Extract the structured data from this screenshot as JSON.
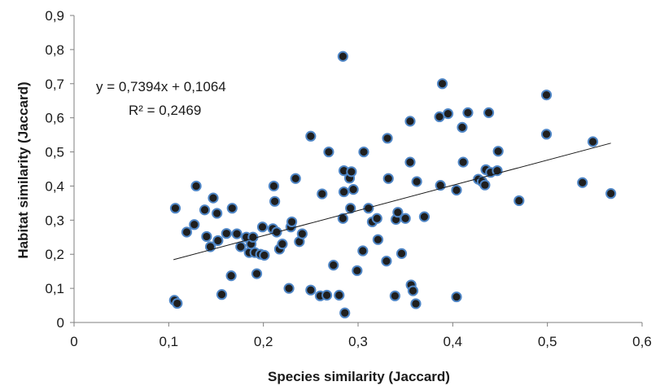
{
  "chart_data": {
    "type": "scatter",
    "title": "",
    "xlabel": "Species similarity (Jaccard)",
    "ylabel": "Habitat similarity (Jaccard)",
    "xlim": [
      0,
      0.6
    ],
    "ylim": [
      0,
      0.9
    ],
    "x_ticks": [
      "0",
      "0,1",
      "0,2",
      "0,3",
      "0,4",
      "0,5",
      "0,6"
    ],
    "y_ticks": [
      "0",
      "0,1",
      "0,2",
      "0,3",
      "0,4",
      "0,5",
      "0,6",
      "0,7",
      "0,8",
      "0,9"
    ],
    "grid": false,
    "legend": "none",
    "marker_fill": "#1f1f1f",
    "marker_edge": "#4f86c6",
    "equation": "y = 0,7394x + 0,1064",
    "r_squared": "R² = 0,2469",
    "trendline": {
      "slope": 0.7394,
      "intercept": 0.1064,
      "x_range": [
        0.105,
        0.567
      ]
    },
    "points": [
      [
        0.106,
        0.065
      ],
      [
        0.109,
        0.056
      ],
      [
        0.107,
        0.335
      ],
      [
        0.119,
        0.265
      ],
      [
        0.127,
        0.287
      ],
      [
        0.129,
        0.4
      ],
      [
        0.138,
        0.33
      ],
      [
        0.14,
        0.252
      ],
      [
        0.144,
        0.222
      ],
      [
        0.147,
        0.365
      ],
      [
        0.151,
        0.32
      ],
      [
        0.152,
        0.24
      ],
      [
        0.156,
        0.082
      ],
      [
        0.161,
        0.261
      ],
      [
        0.166,
        0.137
      ],
      [
        0.167,
        0.335
      ],
      [
        0.172,
        0.26
      ],
      [
        0.176,
        0.222
      ],
      [
        0.182,
        0.25
      ],
      [
        0.185,
        0.205
      ],
      [
        0.187,
        0.23
      ],
      [
        0.189,
        0.25
      ],
      [
        0.191,
        0.205
      ],
      [
        0.193,
        0.143
      ],
      [
        0.197,
        0.2
      ],
      [
        0.199,
        0.28
      ],
      [
        0.201,
        0.197
      ],
      [
        0.21,
        0.275
      ],
      [
        0.211,
        0.4
      ],
      [
        0.212,
        0.355
      ],
      [
        0.214,
        0.265
      ],
      [
        0.217,
        0.215
      ],
      [
        0.22,
        0.23
      ],
      [
        0.227,
        0.1
      ],
      [
        0.229,
        0.28
      ],
      [
        0.23,
        0.295
      ],
      [
        0.234,
        0.422
      ],
      [
        0.238,
        0.237
      ],
      [
        0.241,
        0.26
      ],
      [
        0.25,
        0.546
      ],
      [
        0.25,
        0.095
      ],
      [
        0.26,
        0.078
      ],
      [
        0.262,
        0.377
      ],
      [
        0.267,
        0.08
      ],
      [
        0.269,
        0.5
      ],
      [
        0.274,
        0.168
      ],
      [
        0.28,
        0.08
      ],
      [
        0.284,
        0.78
      ],
      [
        0.284,
        0.305
      ],
      [
        0.285,
        0.445
      ],
      [
        0.285,
        0.383
      ],
      [
        0.286,
        0.028
      ],
      [
        0.291,
        0.423
      ],
      [
        0.292,
        0.335
      ],
      [
        0.293,
        0.442
      ],
      [
        0.295,
        0.39
      ],
      [
        0.299,
        0.152
      ],
      [
        0.305,
        0.21
      ],
      [
        0.306,
        0.5
      ],
      [
        0.311,
        0.335
      ],
      [
        0.315,
        0.295
      ],
      [
        0.32,
        0.305
      ],
      [
        0.321,
        0.243
      ],
      [
        0.33,
        0.18
      ],
      [
        0.331,
        0.54
      ],
      [
        0.332,
        0.422
      ],
      [
        0.339,
        0.078
      ],
      [
        0.34,
        0.302
      ],
      [
        0.342,
        0.323
      ],
      [
        0.346,
        0.202
      ],
      [
        0.35,
        0.305
      ],
      [
        0.355,
        0.59
      ],
      [
        0.355,
        0.47
      ],
      [
        0.356,
        0.11
      ],
      [
        0.358,
        0.093
      ],
      [
        0.361,
        0.055
      ],
      [
        0.362,
        0.413
      ],
      [
        0.37,
        0.31
      ],
      [
        0.386,
        0.603
      ],
      [
        0.387,
        0.402
      ],
      [
        0.389,
        0.7
      ],
      [
        0.395,
        0.612
      ],
      [
        0.404,
        0.388
      ],
      [
        0.404,
        0.075
      ],
      [
        0.41,
        0.572
      ],
      [
        0.411,
        0.47
      ],
      [
        0.416,
        0.615
      ],
      [
        0.427,
        0.42
      ],
      [
        0.431,
        0.413
      ],
      [
        0.434,
        0.403
      ],
      [
        0.435,
        0.448
      ],
      [
        0.438,
        0.615
      ],
      [
        0.44,
        0.44
      ],
      [
        0.447,
        0.445
      ],
      [
        0.448,
        0.502
      ],
      [
        0.47,
        0.357
      ],
      [
        0.499,
        0.667
      ],
      [
        0.499,
        0.552
      ],
      [
        0.537,
        0.41
      ],
      [
        0.548,
        0.53
      ],
      [
        0.567,
        0.378
      ]
    ]
  }
}
